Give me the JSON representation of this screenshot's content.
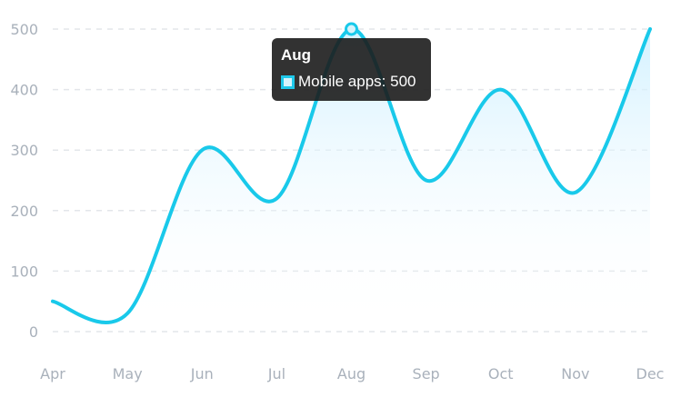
{
  "chart_data": {
    "type": "area",
    "categories": [
      "Apr",
      "May",
      "Jun",
      "Jul",
      "Aug",
      "Sep",
      "Oct",
      "Nov",
      "Dec"
    ],
    "series": [
      {
        "name": "Mobile apps",
        "values": [
          50,
          30,
          300,
          220,
          500,
          250,
          400,
          230,
          500
        ],
        "color": "#19c9ea"
      }
    ],
    "y_ticks": [
      "0",
      "100",
      "200",
      "300",
      "400",
      "500"
    ],
    "ylim": [
      0,
      500
    ],
    "grid": "horizontal-dashed",
    "legend": "none",
    "colors": {
      "line": "#19c9ea",
      "fill_top": "#ccefff",
      "grid": "#e3e6ea",
      "tick_text": "#a9b1bb",
      "tooltip_bg": "#1c1c1c"
    }
  },
  "tooltip": {
    "title": "Aug",
    "series": "Mobile apps",
    "value": "500",
    "text": "Mobile apps: 500"
  }
}
